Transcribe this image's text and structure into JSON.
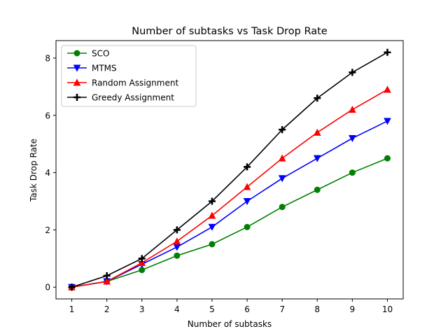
{
  "chart_data": {
    "type": "line",
    "title": "Number of subtasks vs Task Drop Rate",
    "xlabel": "Number of subtasks",
    "ylabel": "Task Drop Rate",
    "x": [
      1,
      2,
      3,
      4,
      5,
      6,
      7,
      8,
      9,
      10
    ],
    "xticks": [
      "1",
      "2",
      "3",
      "4",
      "5",
      "6",
      "7",
      "8",
      "9",
      "10"
    ],
    "yticks": [
      "0",
      "2",
      "4",
      "6",
      "8"
    ],
    "xlim": [
      0.55,
      10.45
    ],
    "ylim": [
      -0.41,
      8.61
    ],
    "grid": false,
    "legend_position": "upper-left",
    "series": [
      {
        "name": "SCO",
        "color": "#008000",
        "marker": "circle",
        "values": [
          0,
          0.2,
          0.6,
          1.1,
          1.5,
          2.1,
          2.8,
          3.4,
          4.0,
          4.5
        ]
      },
      {
        "name": "MTMS",
        "color": "#0000ff",
        "marker": "triangle-down",
        "values": [
          0,
          0.2,
          0.8,
          1.4,
          2.1,
          3.0,
          3.8,
          4.5,
          5.2,
          5.8
        ]
      },
      {
        "name": "Random Assignment",
        "color": "#ff0000",
        "marker": "triangle-up",
        "values": [
          0,
          0.2,
          0.85,
          1.6,
          2.5,
          3.5,
          4.5,
          5.4,
          6.2,
          6.9
        ]
      },
      {
        "name": "Greedy Assignment",
        "color": "#000000",
        "marker": "plus",
        "values": [
          0,
          0.4,
          1.0,
          2.0,
          3.0,
          4.2,
          5.5,
          6.6,
          7.5,
          8.2
        ]
      }
    ]
  }
}
